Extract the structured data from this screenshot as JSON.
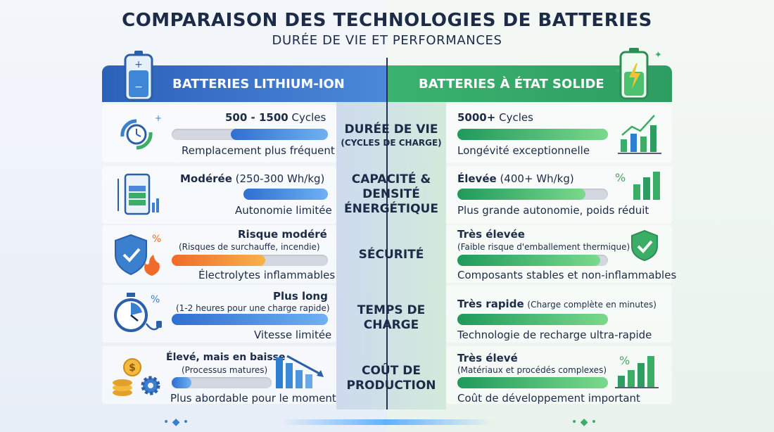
{
  "title": "COMPARAISON DES TECHNOLOGIES DE BATTERIES",
  "subtitle": "DURÉE DE VIE ET PERFORMANCES",
  "left_header": "BATTERIES LITHIUM-ION",
  "right_header": "BATTERIES À ÉTAT SOLIDE",
  "rows": [
    {
      "label": "DURÉE DE VIE",
      "label_sub": "(CYCLES DE CHARGE)",
      "left": {
        "main_bold": "500 - 1500",
        "main_rest": " Cycles",
        "note": "Remplacement plus fréquent",
        "level": 0.6,
        "fill": "blue"
      },
      "right": {
        "main_bold": "5000+",
        "main_rest": " Cycles",
        "note": "Longévité exceptionnelle",
        "level": 1.0,
        "fill": "green"
      }
    },
    {
      "label": "CAPACITÉ & DENSITÉ ÉNERGÉTIQUE",
      "left": {
        "main_bold": "Modérée",
        "main_rest": " (250-300 Wh/kg)",
        "note": "Autonomie limitée",
        "level": 1.0,
        "fill": "blue"
      },
      "right": {
        "main_bold": "Élevée",
        "main_rest": " (400+ Wh/kg)",
        "note": "Plus grande autonomie, poids réduit",
        "level": 0.85,
        "fill": "green"
      }
    },
    {
      "label": "SÉCURITÉ",
      "left": {
        "main_bold": "Risque modéré",
        "sub": "(Risques de surchauffe, incendie)",
        "note": "Électrolytes inflammables",
        "level": 0.6,
        "fill": "orange"
      },
      "right": {
        "main_bold": "Très élevée",
        "sub": "(Faible risque d'emballement thermique)",
        "note": "Composants stables et non-inflammables",
        "level": 0.95,
        "fill": "green"
      }
    },
    {
      "label": "TEMPS DE CHARGE",
      "left": {
        "main_bold": "Plus long",
        "sub": "(1-2 heures pour une charge rapide)",
        "note": "Vitesse limitée",
        "level": 1.0,
        "fill": "blue"
      },
      "right": {
        "main_bold": "Très rapide",
        "sub": "(Charge complète en minutes)",
        "note": "Technologie de recharge ultra-rapide",
        "level": 1.0,
        "fill": "green"
      }
    },
    {
      "label": "COÛT DE PRODUCTION",
      "left": {
        "main_bold": "Élevé, mais en baisse",
        "sub": "(Processus matures)",
        "note": "Plus abordable pour le moment",
        "level": 0.2,
        "fill": "blue"
      },
      "right": {
        "main_bold": "Très élevé",
        "sub": "(Matériaux et procédés complexes)",
        "note": "Coût de développement important",
        "level": 1.0,
        "fill": "green"
      }
    }
  ],
  "colors": {
    "blue_header": "#2c61b8",
    "green_header": "#3ab36e",
    "title": "#1c2b48"
  },
  "icons": [
    "battery-icon",
    "battery-charging-icon",
    "cycle-clock-icon",
    "battery-level-icon",
    "shield-fire-icon",
    "stopwatch-plug-icon",
    "coins-gear-icon",
    "bar-chart-icon",
    "shield-check-icon"
  ]
}
